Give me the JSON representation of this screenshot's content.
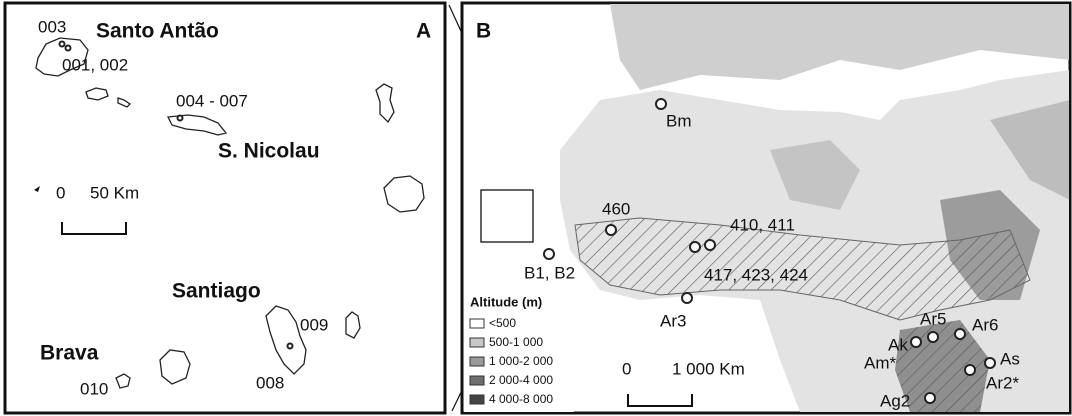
{
  "panel_a": {
    "label": "A",
    "islands": [
      "Santo Antão",
      "S. Nicolau",
      "Santiago",
      "Brava"
    ],
    "sites": [
      "003",
      "001, 002",
      "004 - 007",
      "009",
      "010",
      "008"
    ],
    "scale": {
      "start": "0",
      "end": "50 Km"
    }
  },
  "panel_b": {
    "label": "B",
    "sites": [
      "Bm",
      "460",
      "410, 411",
      "B1, B2",
      "417, 423, 424",
      "Ar3",
      "Ar5",
      "Ar6",
      "Ak",
      "Am*",
      "As",
      "Ar2*",
      "Ag2"
    ],
    "scale": {
      "start": "0",
      "end": "1 000 Km"
    },
    "legend": {
      "title": "Altitude (m)",
      "items": [
        "<500",
        "500-1 000",
        "1 000-2 000",
        "2 000-4 000",
        "4 000-8 000"
      ]
    }
  }
}
